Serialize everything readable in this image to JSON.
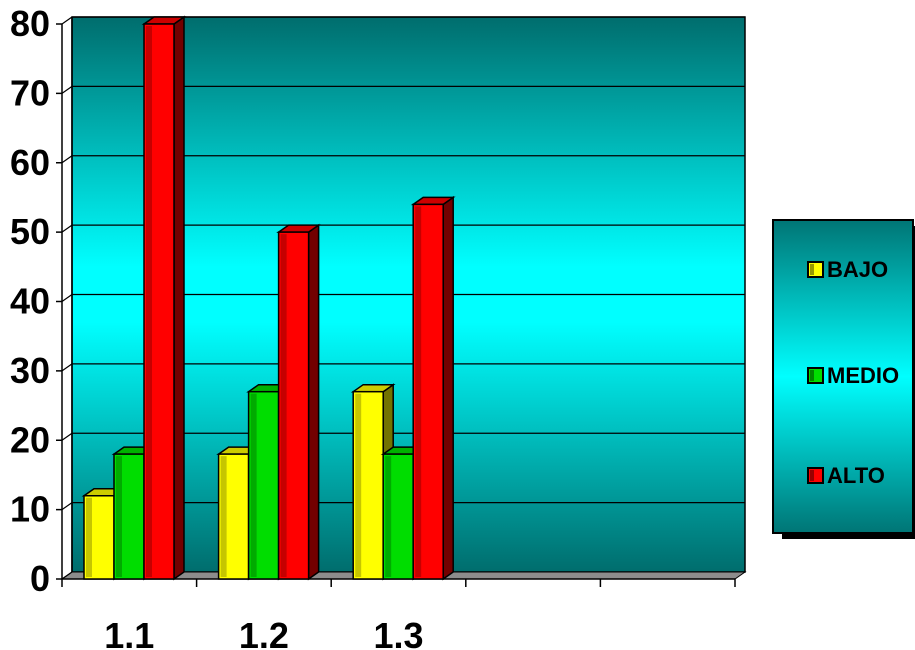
{
  "chart_data": {
    "type": "bar",
    "title": "",
    "xlabel": "",
    "ylabel": "",
    "categories": [
      "1.1",
      "1.2",
      "1.3",
      "",
      ""
    ],
    "series": [
      {
        "name": "BAJO",
        "values": [
          12,
          18,
          27,
          null,
          null
        ],
        "color": "#ffff00"
      },
      {
        "name": "MEDIO",
        "values": [
          18,
          27,
          18,
          null,
          null
        ],
        "color": "#00dd00"
      },
      {
        "name": "ALTO",
        "values": [
          80,
          50,
          54,
          null,
          null
        ],
        "color": "#ff0000"
      }
    ],
    "ylim": [
      0,
      80
    ],
    "yticks": [
      "0",
      "10",
      "20",
      "30",
      "40",
      "50",
      "60",
      "70",
      "80"
    ],
    "grid": true,
    "legend": "right",
    "background": "#00ffff"
  }
}
